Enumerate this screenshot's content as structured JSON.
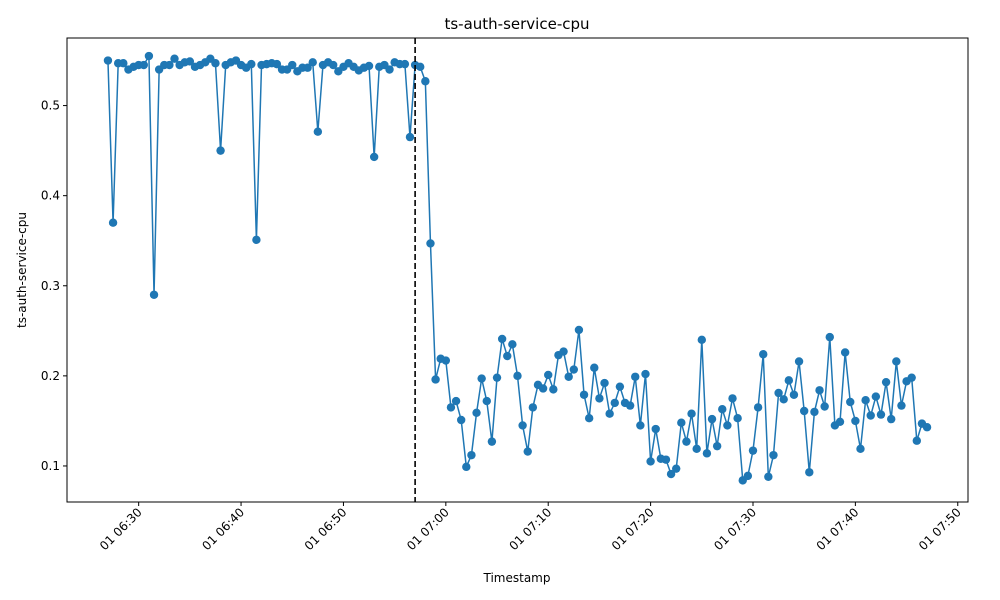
{
  "chart_data": {
    "type": "line",
    "title": "ts-auth-service-cpu",
    "xlabel": "Timestamp",
    "ylabel": "ts-auth-service-cpu",
    "x_start": "06:27",
    "x_interval_minutes": 0.5,
    "xlim": [
      "06:23",
      "07:51"
    ],
    "ylim": [
      0.06,
      0.575
    ],
    "x_ticks": [
      "06:30",
      "06:40",
      "06:50",
      "07:00",
      "07:10",
      "07:20",
      "07:30",
      "07:40",
      "07:50"
    ],
    "x_tick_labels": [
      "01 06:30",
      "01 06:40",
      "01 06:50",
      "01 07:00",
      "01 07:10",
      "01 07:20",
      "01 07:30",
      "01 07:40",
      "01 07:50"
    ],
    "y_ticks": [
      0.1,
      0.2,
      0.3,
      0.4,
      0.5
    ],
    "y_tick_labels": [
      "0.1",
      "0.2",
      "0.3",
      "0.4",
      "0.5"
    ],
    "vline_at": "06:57",
    "series": [
      {
        "color": "#1f77b4",
        "marker": "circle",
        "values": [
          0.55,
          0.37,
          0.547,
          0.547,
          0.54,
          0.543,
          0.545,
          0.545,
          0.555,
          0.29,
          0.54,
          0.545,
          0.545,
          0.552,
          0.545,
          0.548,
          0.549,
          0.543,
          0.545,
          0.548,
          0.552,
          0.547,
          0.45,
          0.545,
          0.548,
          0.55,
          0.545,
          0.542,
          0.546,
          0.351,
          0.545,
          0.546,
          0.547,
          0.546,
          0.54,
          0.54,
          0.545,
          0.538,
          0.542,
          0.542,
          0.548,
          0.471,
          0.545,
          0.548,
          0.545,
          0.538,
          0.543,
          0.547,
          0.543,
          0.539,
          0.542,
          0.544,
          0.443,
          0.543,
          0.545,
          0.54,
          0.548,
          0.546,
          0.546,
          0.465,
          0.545,
          0.543,
          0.527,
          0.347,
          0.196,
          0.219,
          0.217,
          0.165,
          0.172,
          0.151,
          0.099,
          0.112,
          0.159,
          0.197,
          0.172,
          0.127,
          0.198,
          0.241,
          0.222,
          0.235,
          0.2,
          0.145,
          0.116,
          0.165,
          0.19,
          0.186,
          0.201,
          0.185,
          0.223,
          0.227,
          0.199,
          0.207,
          0.251,
          0.179,
          0.153,
          0.209,
          0.175,
          0.192,
          0.158,
          0.17,
          0.188,
          0.17,
          0.167,
          0.199,
          0.145,
          0.202,
          0.105,
          0.141,
          0.108,
          0.107,
          0.091,
          0.097,
          0.148,
          0.127,
          0.158,
          0.119,
          0.24,
          0.114,
          0.152,
          0.122,
          0.163,
          0.145,
          0.175,
          0.153,
          0.084,
          0.089,
          0.117,
          0.165,
          0.224,
          0.088,
          0.112,
          0.181,
          0.174,
          0.195,
          0.179,
          0.216,
          0.161,
          0.093,
          0.16,
          0.184,
          0.166,
          0.243,
          0.145,
          0.149,
          0.226,
          0.171,
          0.15,
          0.119,
          0.173,
          0.156,
          0.177,
          0.157,
          0.193,
          0.152,
          0.216,
          0.167,
          0.194,
          0.198,
          0.128,
          0.147,
          0.143
        ]
      }
    ],
    "grid": false,
    "legend": "none"
  }
}
